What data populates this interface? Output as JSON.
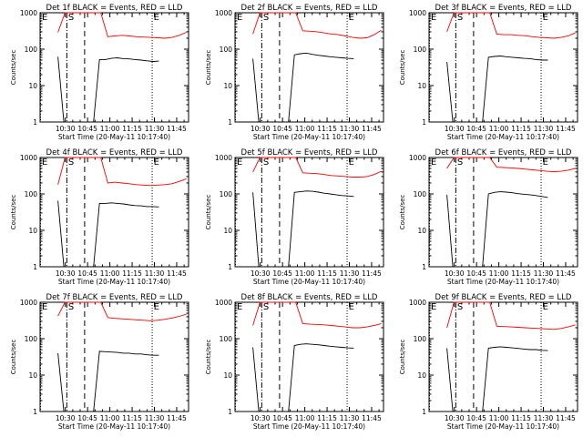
{
  "chart_data": [
    {
      "type": "line",
      "title": "Det 1f BLACK = Events, RED = LLD",
      "xlabel": "Start Time (20-May-11 10:17:40)",
      "ylabel": "Counts/sec",
      "yscale": "log",
      "ylim": [
        1,
        1000
      ],
      "xtick_labels": [
        "10:30",
        "10:45",
        "11:00",
        "11:15",
        "11:30",
        "11:45"
      ],
      "ytick_labels": [
        "1",
        "10",
        "100",
        "1000"
      ],
      "markers": [
        "E",
        "S",
        "E"
      ],
      "series": [
        {
          "name": "Events",
          "color": "#000000",
          "values": [
            62,
            1,
            1,
            1,
            1,
            1,
            1,
            52,
            52,
            56,
            58,
            55,
            54,
            52,
            50,
            48,
            46,
            47
          ]
        },
        {
          "name": "LLD",
          "color": "#ff0000",
          "values": [
            290,
            1000,
            1000,
            1000,
            1000,
            1000,
            1000,
            220,
            230,
            240,
            230,
            220,
            215,
            210,
            205,
            200,
            210,
            240,
            290
          ]
        }
      ]
    },
    {
      "type": "line",
      "title": "Det 2f BLACK = Events, RED = LLD",
      "xlabel": "Start Time (20-May-11 10:17:40)",
      "ylabel": "Counts/sec",
      "yscale": "log",
      "ylim": [
        1,
        1000
      ],
      "xtick_labels": [
        "10:30",
        "10:45",
        "11:00",
        "11:15",
        "11:30",
        "11:45"
      ],
      "ytick_labels": [
        "1",
        "10",
        "100",
        "1000"
      ],
      "markers": [
        "E",
        "S",
        "E"
      ],
      "series": [
        {
          "name": "Events",
          "color": "#000000",
          "values": [
            55,
            1,
            1,
            1,
            1,
            1,
            1,
            70,
            75,
            78,
            72,
            68,
            65,
            62,
            60,
            58,
            56,
            55
          ]
        },
        {
          "name": "LLD",
          "color": "#ff0000",
          "values": [
            260,
            1000,
            1000,
            1000,
            1000,
            1000,
            1000,
            320,
            310,
            300,
            280,
            260,
            250,
            230,
            210,
            200,
            205,
            250,
            330
          ]
        }
      ]
    },
    {
      "type": "line",
      "title": "Det 3f BLACK = Events, RED = LLD",
      "xlabel": "Start Time (20-May-11 10:17:40)",
      "ylabel": "Counts/sec",
      "yscale": "log",
      "ylim": [
        1,
        1000
      ],
      "xtick_labels": [
        "10:30",
        "10:45",
        "11:00",
        "11:15",
        "11:30",
        "11:45"
      ],
      "ytick_labels": [
        "1",
        "10",
        "100",
        "1000"
      ],
      "markers": [
        "E",
        "S",
        "E"
      ],
      "series": [
        {
          "name": "Events",
          "color": "#000000",
          "values": [
            45,
            1,
            1,
            1,
            1,
            1,
            1,
            60,
            63,
            65,
            62,
            60,
            58,
            56,
            55,
            52,
            50,
            50
          ]
        },
        {
          "name": "LLD",
          "color": "#ff0000",
          "values": [
            300,
            1000,
            1000,
            1000,
            1000,
            1000,
            1000,
            260,
            250,
            250,
            240,
            235,
            220,
            210,
            205,
            200,
            210,
            230,
            280
          ]
        }
      ]
    },
    {
      "type": "line",
      "title": "Det 4f BLACK = Events, RED = LLD",
      "xlabel": "Start Time (20-May-11 10:17:40)",
      "ylabel": "Counts/sec",
      "yscale": "log",
      "ylim": [
        1,
        1000
      ],
      "xtick_labels": [
        "10:30",
        "10:45",
        "11:00",
        "11:15",
        "11:30",
        "11:45"
      ],
      "ytick_labels": [
        "1",
        "10",
        "100",
        "1000"
      ],
      "markers": [
        "E",
        "S",
        "E"
      ],
      "series": [
        {
          "name": "Events",
          "color": "#000000",
          "values": [
            65,
            1,
            1,
            1,
            1,
            1,
            1,
            55,
            55,
            57,
            55,
            53,
            50,
            48,
            47,
            45,
            45,
            44
          ]
        },
        {
          "name": "LLD",
          "color": "#ff0000",
          "values": [
            180,
            1000,
            1000,
            1000,
            1000,
            1000,
            1000,
            200,
            210,
            200,
            190,
            180,
            175,
            170,
            175,
            180,
            190,
            220,
            260
          ]
        }
      ]
    },
    {
      "type": "line",
      "title": "Det 5f BLACK = Events, RED = LLD",
      "xlabel": "Start Time (20-May-11 10:17:40)",
      "ylabel": "Counts/sec",
      "yscale": "log",
      "ylim": [
        1,
        1000
      ],
      "xtick_labels": [
        "10:30",
        "10:45",
        "11:00",
        "11:15",
        "11:30",
        "11:45"
      ],
      "ytick_labels": [
        "1",
        "10",
        "100",
        "1000"
      ],
      "markers": [
        "E",
        "S",
        "E"
      ],
      "series": [
        {
          "name": "Events",
          "color": "#000000",
          "values": [
            110,
            1,
            1,
            1,
            1,
            1,
            1,
            110,
            115,
            120,
            118,
            112,
            105,
            100,
            95,
            90,
            88,
            85
          ]
        },
        {
          "name": "LLD",
          "color": "#ff0000",
          "values": [
            400,
            1000,
            1000,
            1000,
            1000,
            1000,
            1000,
            380,
            370,
            360,
            340,
            320,
            310,
            300,
            290,
            290,
            300,
            340,
            420
          ]
        }
      ]
    },
    {
      "type": "line",
      "title": "Det 6f BLACK = Events, RED = LLD",
      "xlabel": "Start Time (20-May-11 10:17:40)",
      "ylabel": "Counts/sec",
      "yscale": "log",
      "ylim": [
        1,
        1000
      ],
      "xtick_labels": [
        "10:30",
        "10:45",
        "11:00",
        "11:15",
        "11:30",
        "11:45"
      ],
      "ytick_labels": [
        "1",
        "10",
        "100",
        "1000"
      ],
      "markers": [
        "E",
        "S",
        "E"
      ],
      "series": [
        {
          "name": "Events",
          "color": "#000000",
          "values": [
            95,
            1,
            1,
            1,
            1,
            1,
            1,
            100,
            110,
            115,
            112,
            108,
            102,
            98,
            95,
            90,
            85,
            80
          ]
        },
        {
          "name": "LLD",
          "color": "#ff0000",
          "values": [
            500,
            1000,
            1000,
            1000,
            1000,
            1000,
            1000,
            540,
            530,
            520,
            500,
            480,
            460,
            440,
            420,
            410,
            420,
            450,
            500
          ]
        }
      ]
    },
    {
      "type": "line",
      "title": "Det 7f BLACK = Events, RED = LLD",
      "xlabel": "Start Time (20-May-11 10:17:40)",
      "ylabel": "Counts/sec",
      "yscale": "log",
      "ylim": [
        1,
        1000
      ],
      "xtick_labels": [
        "10:30",
        "10:45",
        "11:00",
        "11:15",
        "11:30",
        "11:45"
      ],
      "ytick_labels": [
        "1",
        "10",
        "100",
        "1000"
      ],
      "markers": [
        "E",
        "S",
        "E"
      ],
      "series": [
        {
          "name": "Events",
          "color": "#000000",
          "values": [
            40,
            1,
            1,
            1,
            1,
            1,
            1,
            45,
            44,
            43,
            42,
            40,
            40,
            38,
            38,
            36,
            35,
            35
          ]
        },
        {
          "name": "LLD",
          "color": "#ff0000",
          "values": [
            420,
            1000,
            1000,
            1000,
            1000,
            1000,
            1000,
            380,
            360,
            350,
            340,
            330,
            320,
            310,
            320,
            340,
            370,
            410,
            470
          ]
        }
      ]
    },
    {
      "type": "line",
      "title": "Det 8f BLACK = Events, RED = LLD",
      "xlabel": "Start Time (20-May-11 10:17:40)",
      "ylabel": "Counts/sec",
      "yscale": "log",
      "ylim": [
        1,
        1000
      ],
      "xtick_labels": [
        "10:30",
        "10:45",
        "11:00",
        "11:15",
        "11:30",
        "11:45"
      ],
      "ytick_labels": [
        "1",
        "10",
        "100",
        "1000"
      ],
      "markers": [
        "E",
        "S",
        "E"
      ],
      "series": [
        {
          "name": "Events",
          "color": "#000000",
          "values": [
            58,
            1,
            1,
            1,
            1,
            1,
            1,
            65,
            70,
            72,
            70,
            68,
            65,
            62,
            60,
            58,
            56,
            55
          ]
        },
        {
          "name": "LLD",
          "color": "#ff0000",
          "values": [
            230,
            1000,
            1000,
            1000,
            1000,
            1000,
            1000,
            260,
            250,
            245,
            240,
            230,
            220,
            210,
            200,
            200,
            210,
            230,
            260
          ]
        }
      ]
    },
    {
      "type": "line",
      "title": "Det 9f BLACK = Events, RED = LLD",
      "xlabel": "Start Time (20-May-11 10:17:40)",
      "ylabel": "Counts/sec",
      "yscale": "log",
      "ylim": [
        1,
        1000
      ],
      "xtick_labels": [
        "10:30",
        "10:45",
        "11:00",
        "11:15",
        "11:30",
        "11:45"
      ],
      "ytick_labels": [
        "1",
        "10",
        "100",
        "1000"
      ],
      "markers": [
        "E",
        "S",
        "E"
      ],
      "series": [
        {
          "name": "Events",
          "color": "#000000",
          "values": [
            55,
            1,
            1,
            1,
            1,
            1,
            1,
            55,
            58,
            60,
            58,
            56,
            54,
            52,
            50,
            50,
            48,
            47
          ]
        },
        {
          "name": "LLD",
          "color": "#ff0000",
          "values": [
            200,
            1000,
            1000,
            1000,
            1000,
            1000,
            1000,
            220,
            215,
            210,
            205,
            200,
            195,
            190,
            185,
            180,
            190,
            210,
            240
          ]
        }
      ]
    }
  ]
}
